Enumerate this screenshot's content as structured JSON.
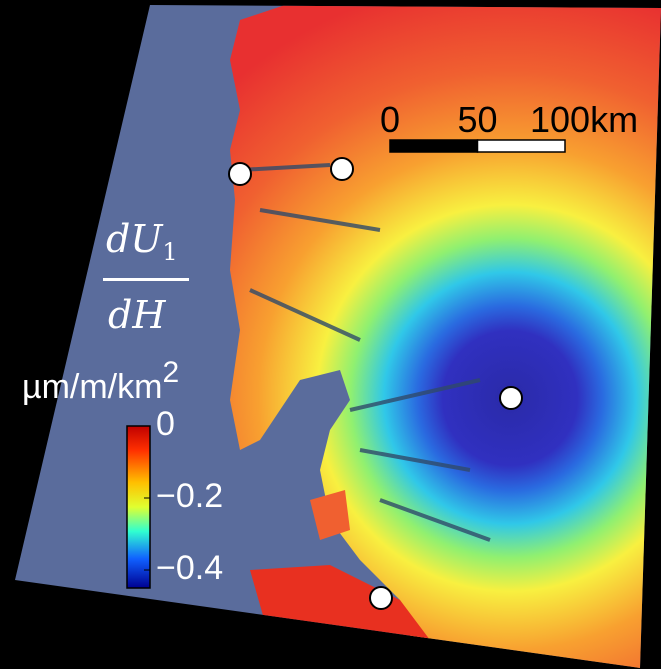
{
  "colorbar": {
    "label": {
      "numerator": "dU",
      "subscript": "1",
      "denominator": "dH"
    },
    "unit": "µm/m/km",
    "unit_exponent": "2",
    "lim": [
      -0.45,
      0
    ],
    "ticks": [
      0,
      {
        "value": -0.2,
        "label": "−0.2"
      },
      {
        "value": -0.4,
        "label": "−0.4"
      }
    ]
  },
  "scale_bar": {
    "lim": [
      0,
      100
    ],
    "ticks": [
      0,
      50,
      {
        "value": 100,
        "label": "100km"
      }
    ]
  }
}
